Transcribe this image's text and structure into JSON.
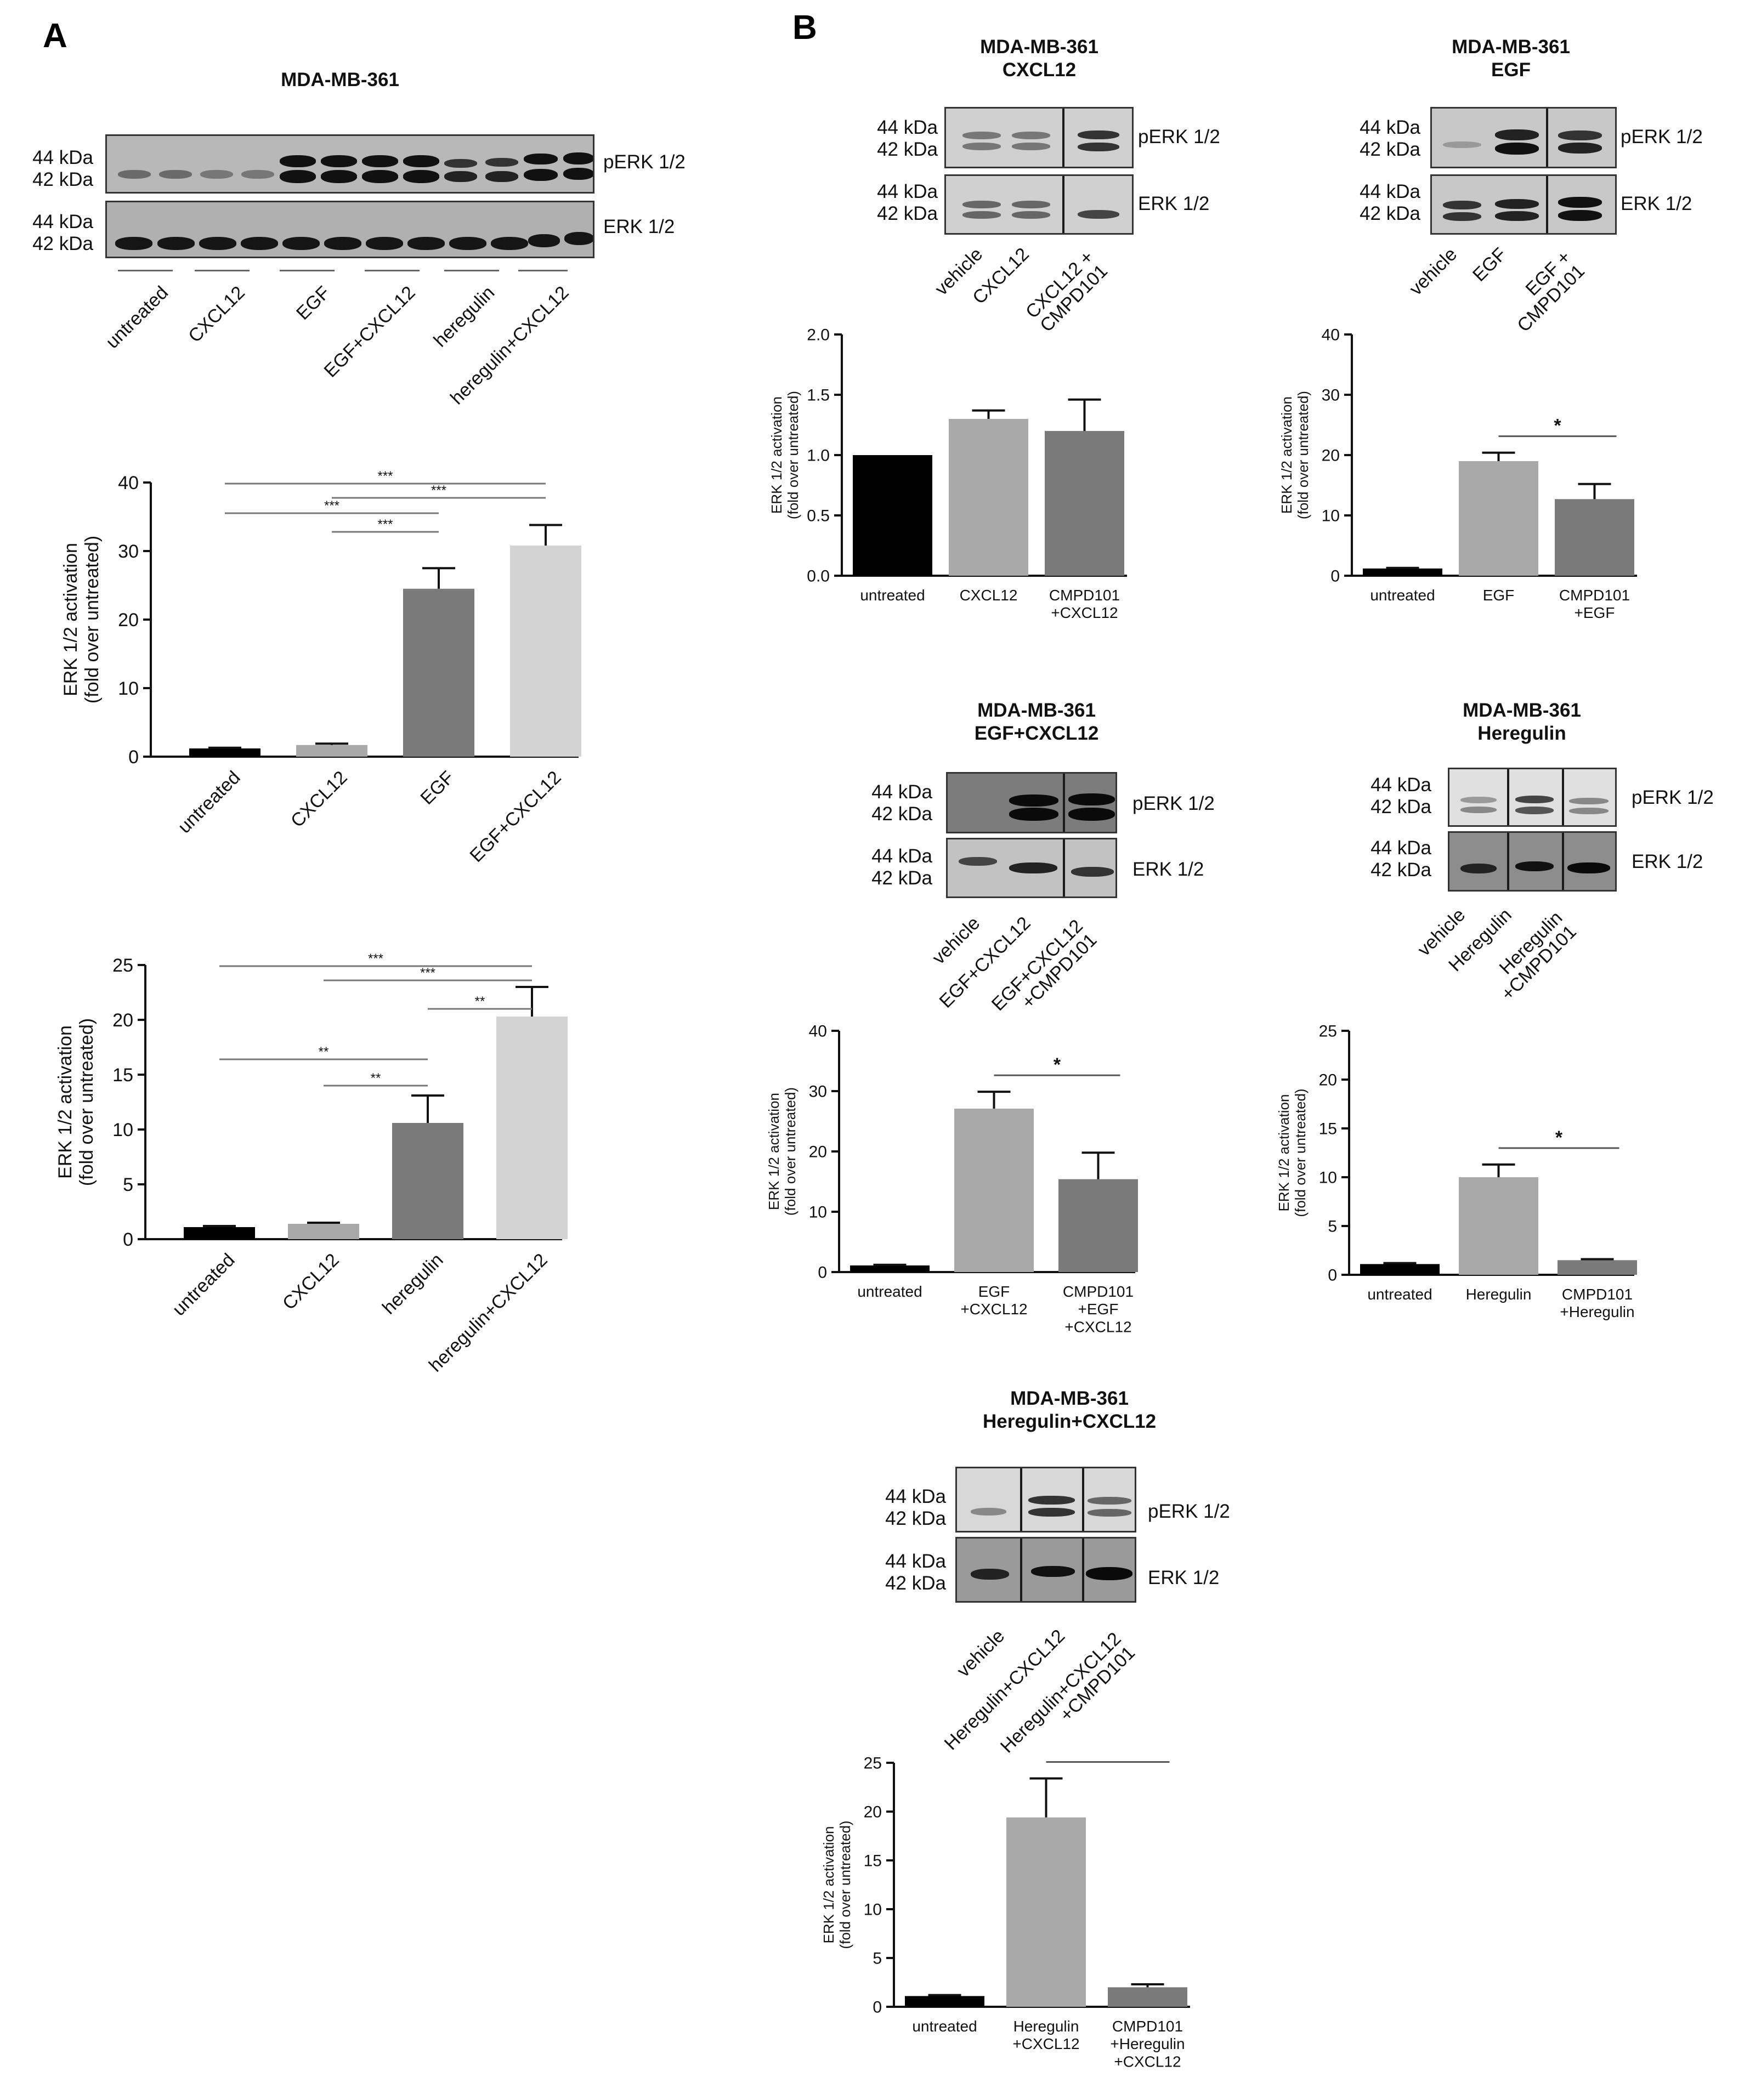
{
  "panels": {
    "a": "A",
    "b": "B"
  },
  "blots": [
    {
      "id": "blotA",
      "title": "MDA-MB-361",
      "kda": [
        "44 kDa",
        "42 kDa"
      ],
      "labels": [
        "pERK 1/2",
        "ERK 1/2"
      ],
      "underlined_lanes": [
        "untreated",
        "CXCL12",
        "EGF",
        "EGF+CXCL12",
        "heregulin",
        "heregulin+CXCL12"
      ]
    },
    {
      "id": "blotB1",
      "title": "MDA-MB-361\nCXCL12",
      "kda": [
        "44 kDa",
        "42 kDa"
      ],
      "labels": [
        "pERK 1/2",
        "ERK 1/2"
      ],
      "lanes": [
        "vehicle",
        "CXCL12",
        "CXCL12 +\nCMPD101"
      ]
    },
    {
      "id": "blotB2",
      "title": "MDA-MB-361\nEGF",
      "kda": [
        "44 kDa",
        "42 kDa"
      ],
      "labels": [
        "pERK 1/2",
        "ERK 1/2"
      ],
      "lanes": [
        "vehicle",
        "EGF",
        "EGF +\nCMPD101"
      ]
    },
    {
      "id": "blotB3",
      "title": "MDA-MB-361\nEGF+CXCL12",
      "kda": [
        "44 kDa",
        "42 kDa"
      ],
      "labels": [
        "pERK 1/2",
        "ERK 1/2"
      ],
      "lanes": [
        "vehicle",
        "EGF+CXCL12",
        "EGF+CXCL12\n+CMPD101"
      ]
    },
    {
      "id": "blotB4",
      "title": "MDA-MB-361\nHeregulin",
      "kda": [
        "44 kDa",
        "42 kDa"
      ],
      "labels": [
        "pERK 1/2",
        "ERK 1/2"
      ],
      "lanes": [
        "vehicle",
        "Heregulin",
        "Heregulin\n+CMPD101"
      ]
    },
    {
      "id": "blotB5",
      "title": "MDA-MB-361\nHeregulin+CXCL12",
      "kda": [
        "44 kDa",
        "42 kDa"
      ],
      "labels": [
        "pERK 1/2",
        "ERK 1/2"
      ],
      "lanes": [
        "vehicle",
        "Heregulin+CXCL12",
        "Heregulin+CXCL12\n+CMPD101"
      ]
    }
  ],
  "chart_data": [
    {
      "id": "A1",
      "type": "bar",
      "ylabel": "ERK 1/2 activation\n(fold over untreated)",
      "ylim": [
        0,
        40
      ],
      "yticks": [
        0,
        10,
        20,
        30,
        40
      ],
      "categories": [
        "untreated",
        "CXCL12",
        "EGF",
        "EGF+CXCL12"
      ],
      "values": [
        1.2,
        1.7,
        24.5,
        30.8
      ],
      "errors": [
        0.1,
        0.2,
        3.0,
        3.0
      ],
      "colors": [
        "#000000",
        "#a9a9a9",
        "#7a7a7a",
        "#d3d3d3"
      ],
      "label_style": "rotated",
      "significance": [
        {
          "from": 0,
          "to": 3,
          "label": "***"
        },
        {
          "from": 1,
          "to": 3,
          "label": "***"
        },
        {
          "from": 0,
          "to": 2,
          "label": "***"
        },
        {
          "from": 1,
          "to": 2,
          "label": "***"
        }
      ]
    },
    {
      "id": "A2",
      "type": "bar",
      "ylabel": "ERK 1/2 activation\n(fold over untreated)",
      "ylim": [
        0,
        25
      ],
      "yticks": [
        0,
        5,
        10,
        15,
        20,
        25
      ],
      "categories": [
        "untreated",
        "CXCL12",
        "heregulin",
        "heregulin+CXCL12"
      ],
      "values": [
        1.1,
        1.4,
        10.6,
        20.3
      ],
      "errors": [
        0.1,
        0.1,
        2.5,
        2.7
      ],
      "colors": [
        "#000000",
        "#a9a9a9",
        "#7a7a7a",
        "#d3d3d3"
      ],
      "label_style": "rotated",
      "significance": [
        {
          "from": 0,
          "to": 3,
          "label": "***"
        },
        {
          "from": 1,
          "to": 3,
          "label": "***"
        },
        {
          "from": 2,
          "to": 3,
          "label": "**"
        },
        {
          "from": 0,
          "to": 2,
          "label": "**"
        },
        {
          "from": 1,
          "to": 2,
          "label": "**"
        }
      ]
    },
    {
      "id": "B1",
      "type": "bar",
      "ylabel": "ERK 1/2 activation\n(fold over untreated)",
      "ylim": [
        0,
        2.0
      ],
      "yticks": [
        "0.0",
        "0.5",
        "1.0",
        "1.5",
        "2.0"
      ],
      "categories": [
        "untreated",
        "CXCL12",
        "CMPD101\n+CXCL12"
      ],
      "values": [
        1.0,
        1.3,
        1.2
      ],
      "errors": [
        0,
        0.07,
        0.26
      ],
      "colors": [
        "#000000",
        "#a9a9a9",
        "#7a7a7a"
      ],
      "label_style": "flat",
      "significance": []
    },
    {
      "id": "B2",
      "type": "bar",
      "ylabel": "ERK 1/2 activation\n(fold over untreated)",
      "ylim": [
        0,
        40
      ],
      "yticks": [
        0,
        10,
        20,
        30,
        40
      ],
      "categories": [
        "untreated",
        "EGF",
        "CMPD101\n+EGF"
      ],
      "values": [
        1.2,
        19.0,
        12.7
      ],
      "errors": [
        0.1,
        1.4,
        2.5
      ],
      "colors": [
        "#000000",
        "#a9a9a9",
        "#7a7a7a"
      ],
      "label_style": "flat",
      "significance": [
        {
          "from": 1,
          "to": 2,
          "label": "*"
        }
      ]
    },
    {
      "id": "B3",
      "type": "bar",
      "ylabel": "ERK 1/2 activation\n(fold over untreated)",
      "ylim": [
        0,
        40
      ],
      "yticks": [
        0,
        10,
        20,
        30,
        40
      ],
      "categories": [
        "untreated",
        "EGF\n+CXCL12",
        "CMPD101\n+EGF\n+CXCL12"
      ],
      "values": [
        1.1,
        27.1,
        15.4
      ],
      "errors": [
        0.1,
        2.8,
        4.4
      ],
      "colors": [
        "#000000",
        "#a9a9a9",
        "#7a7a7a"
      ],
      "label_style": "flat",
      "significance": [
        {
          "from": 1,
          "to": 2,
          "label": "*"
        }
      ]
    },
    {
      "id": "B4",
      "type": "bar",
      "ylabel": "ERK 1/2 activation\n(fold over untreated)",
      "ylim": [
        0,
        25
      ],
      "yticks": [
        0,
        5,
        10,
        15,
        20,
        25
      ],
      "categories": [
        "untreated",
        "Heregulin",
        "CMPD101\n+Heregulin"
      ],
      "values": [
        1.1,
        10.0,
        1.5
      ],
      "errors": [
        0.1,
        1.3,
        0.1
      ],
      "colors": [
        "#000000",
        "#a9a9a9",
        "#7a7a7a"
      ],
      "label_style": "flat",
      "significance": [
        {
          "from": 1,
          "to": 2,
          "label": "*"
        }
      ]
    },
    {
      "id": "B5",
      "type": "bar",
      "ylabel": "ERK 1/2 activation\n(fold over untreated)",
      "ylim": [
        0,
        25
      ],
      "yticks": [
        0,
        5,
        10,
        15,
        20,
        25
      ],
      "categories": [
        "untreated",
        "Heregulin\n+CXCL12",
        "CMPD101\n+Heregulin\n+CXCL12"
      ],
      "values": [
        1.1,
        19.4,
        2.0
      ],
      "errors": [
        0.1,
        4.0,
        0.3
      ],
      "colors": [
        "#000000",
        "#a9a9a9",
        "#7a7a7a"
      ],
      "label_style": "flat",
      "significance": [
        {
          "from": 1,
          "to": 2,
          "label": "*"
        }
      ]
    }
  ]
}
